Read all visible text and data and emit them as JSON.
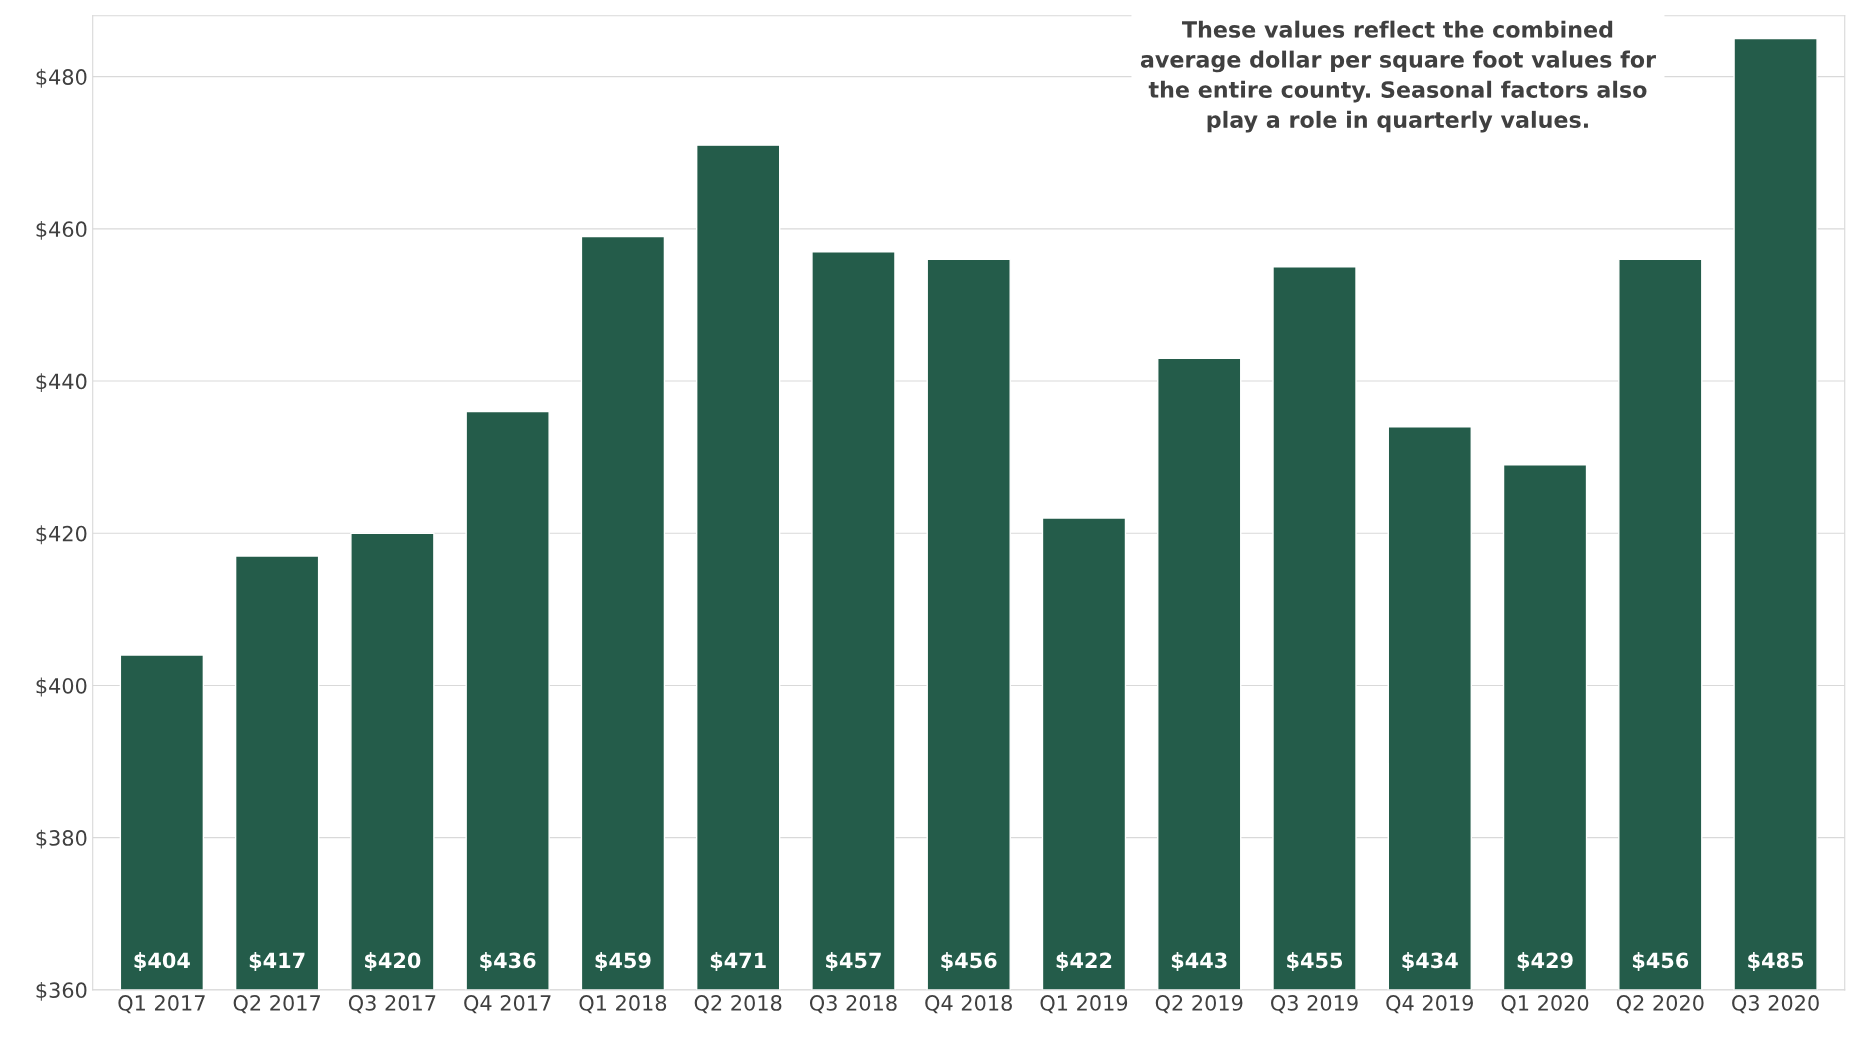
{
  "chart_data": {
    "type": "bar",
    "categories": [
      "Q1 2017",
      "Q2 2017",
      "Q3 2017",
      "Q4 2017",
      "Q1 2018",
      "Q2 2018",
      "Q3 2018",
      "Q4 2018",
      "Q1 2019",
      "Q2 2019",
      "Q3 2019",
      "Q4 2019",
      "Q1 2020",
      "Q2 2020",
      "Q3 2020"
    ],
    "series": [
      {
        "color": "#245c4a",
        "values": [
          404,
          417,
          420,
          436,
          459,
          471,
          457,
          456,
          422,
          443,
          455,
          434,
          429,
          456,
          485
        ],
        "value_labels": [
          "$404",
          "$417",
          "$420",
          "$436",
          "$459",
          "$471",
          "$457",
          "$456",
          "$422",
          "$443",
          "$455",
          "$434",
          "$429",
          "$456",
          "$485"
        ]
      }
    ],
    "ylim": [
      360,
      488
    ],
    "yticks": [
      {
        "value": 360,
        "label": "$360"
      },
      {
        "value": 380,
        "label": "$380"
      },
      {
        "value": 400,
        "label": "$400"
      },
      {
        "value": 420,
        "label": "$420"
      },
      {
        "value": 440,
        "label": "$440"
      },
      {
        "value": 460,
        "label": "$460"
      },
      {
        "value": 480,
        "label": "$480"
      }
    ],
    "grid": "y",
    "annotations": [
      "These values reflect the combined average dollar per square foot values for the entire county. Seasonal factors also play a role in quarterly values."
    ]
  }
}
